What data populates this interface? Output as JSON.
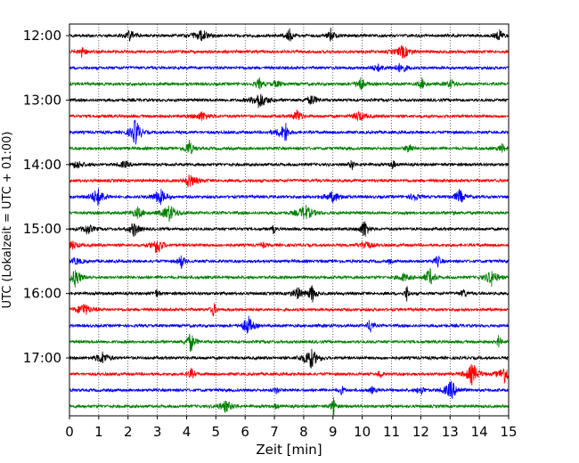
{
  "chart_data": {
    "type": "line",
    "title": "",
    "xlabel": "Zeit  [min]",
    "ylabel": "UTC (Lokalzeit = UTC + 01:00)",
    "x_range": [
      0,
      15
    ],
    "x_ticks": [
      "0",
      "1",
      "2",
      "3",
      "4",
      "5",
      "6",
      "7",
      "8",
      "9",
      "10",
      "11",
      "12",
      "13",
      "14",
      "15"
    ],
    "y_tick_labels": [
      "12:00",
      "13:00",
      "14:00",
      "15:00",
      "16:00",
      "17:00"
    ],
    "grid": "vertical dotted lines at each minute",
    "trace_interval_min": 15,
    "traces": [
      {
        "start": "12:00",
        "color": "#000000"
      },
      {
        "start": "12:15",
        "color": "#ff0000"
      },
      {
        "start": "12:30",
        "color": "#0000ff"
      },
      {
        "start": "12:45",
        "color": "#008000"
      },
      {
        "start": "13:00",
        "color": "#000000"
      },
      {
        "start": "13:15",
        "color": "#ff0000"
      },
      {
        "start": "13:30",
        "color": "#0000ff"
      },
      {
        "start": "13:45",
        "color": "#008000"
      },
      {
        "start": "14:00",
        "color": "#000000"
      },
      {
        "start": "14:15",
        "color": "#ff0000"
      },
      {
        "start": "14:30",
        "color": "#0000ff"
      },
      {
        "start": "14:45",
        "color": "#008000"
      },
      {
        "start": "15:00",
        "color": "#000000"
      },
      {
        "start": "15:15",
        "color": "#ff0000"
      },
      {
        "start": "15:30",
        "color": "#0000ff"
      },
      {
        "start": "15:45",
        "color": "#008000"
      },
      {
        "start": "16:00",
        "color": "#000000"
      },
      {
        "start": "16:15",
        "color": "#ff0000"
      },
      {
        "start": "16:30",
        "color": "#0000ff"
      },
      {
        "start": "16:45",
        "color": "#008000"
      },
      {
        "start": "17:00",
        "color": "#000000"
      },
      {
        "start": "17:15",
        "color": "#ff0000"
      },
      {
        "start": "17:30",
        "color": "#0000ff"
      },
      {
        "start": "17:45",
        "color": "#008000"
      }
    ]
  }
}
